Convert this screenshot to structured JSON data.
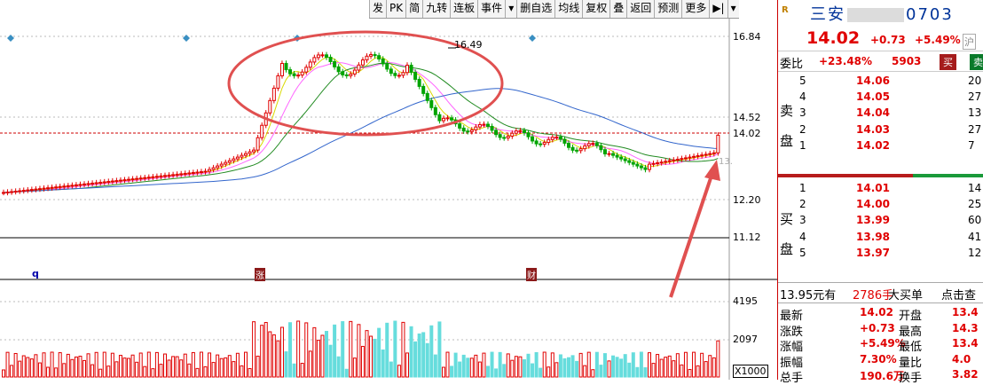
{
  "toolbar": {
    "items": [
      "发",
      "PK",
      "简",
      "九转",
      "连板",
      "事件",
      "▾",
      "删自选",
      "均线",
      "复权",
      "叠",
      "返回",
      "预测",
      "更多",
      "▶|",
      "▾"
    ]
  },
  "tool_icons": [
    "settings-icon",
    "gear-icon",
    "eye-icon",
    "camera-icon",
    "layout-icon",
    "close-icon",
    "zoom-out-icon",
    "zoom-in-icon"
  ],
  "stock": {
    "tag": "R",
    "name": "三安",
    "code_visible": "0703",
    "price": "14.02",
    "change": "+0.73",
    "change_pct": "+5.49%",
    "market": "沪",
    "webi_label": "委比",
    "webi_value": "+23.48%",
    "webi_volume": "5903",
    "buy_btn": "买",
    "sell_btn": "卖"
  },
  "asks": [
    {
      "level": "5",
      "price": "14.06",
      "vol": "20"
    },
    {
      "level": "4",
      "price": "14.05",
      "vol": "27"
    },
    {
      "level": "3",
      "price": "14.04",
      "vol": "13"
    },
    {
      "level": "2",
      "price": "14.03",
      "vol": "27"
    },
    {
      "level": "1",
      "price": "14.02",
      "vol": "7"
    }
  ],
  "bids": [
    {
      "level": "1",
      "price": "14.01",
      "vol": "14"
    },
    {
      "level": "2",
      "price": "14.00",
      "vol": "25"
    },
    {
      "level": "3",
      "price": "13.99",
      "vol": "60"
    },
    {
      "level": "4",
      "price": "13.98",
      "vol": "41"
    },
    {
      "level": "5",
      "price": "13.97",
      "vol": "12"
    }
  ],
  "ask_label": [
    "卖",
    "盘"
  ],
  "bid_label": [
    "买",
    "盘"
  ],
  "trade_line": {
    "price": "13.95元有",
    "qty": "2786手",
    "order": "大买单",
    "action": "点击查"
  },
  "quote": [
    {
      "l": "最新",
      "v": "14.02",
      "l2": "开盘",
      "v2": "13.4"
    },
    {
      "l": "涨跌",
      "v": "+0.73",
      "l2": "最高",
      "v2": "14.3"
    },
    {
      "l": "涨幅",
      "v": "+5.49%",
      "l2": "最低",
      "v2": "13.4"
    },
    {
      "l": "振幅",
      "v": "7.30%",
      "l2": "量比",
      "v2": "4.0"
    },
    {
      "l": "总手",
      "v": "190.6万",
      "l2": "换手",
      "v2": "3.82"
    }
  ],
  "axis": {
    "price_ticks": [
      "16.84",
      "14.52",
      "14.02",
      "12.20",
      "11.12"
    ],
    "vol_ticks": [
      "4195",
      "2097",
      "X1000"
    ],
    "peak_label": "16.49",
    "markers": [
      "q",
      "涨",
      "财"
    ],
    "cut_label": "13."
  },
  "chart_data": {
    "type": "candlestick",
    "ylim": [
      11.12,
      16.84
    ],
    "last_price": 14.02,
    "peak": 16.49,
    "volume_ylim": [
      0,
      4195
    ],
    "volume_unit": "X1000"
  },
  "colors": {
    "up": "#e00000",
    "down": "#00a400",
    "ma5": "#d9d900",
    "ma10": "#ff66ff",
    "ma20": "#228b22",
    "ma60": "#3366cc",
    "vol_up": "#e00000",
    "vol_down": "#66dddd"
  }
}
